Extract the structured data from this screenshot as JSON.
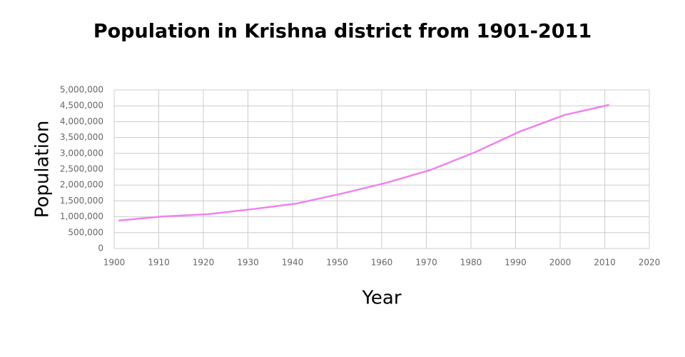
{
  "chart_data": {
    "type": "line",
    "title": "Population in Krishna district from 1901-2011",
    "x_label": "Year",
    "y_label": "Population",
    "x": [
      1901,
      1911,
      1921,
      1931,
      1941,
      1951,
      1961,
      1971,
      1981,
      1991,
      2001,
      2011
    ],
    "series": [
      {
        "color": "#ee82ee",
        "values": [
          880000,
          1010000,
          1080000,
          1240000,
          1420000,
          1730000,
          2070000,
          2480000,
          3040000,
          3690000,
          4210000,
          4530000
        ]
      }
    ],
    "xlim": [
      1900,
      2020
    ],
    "xticks": [
      1900,
      1910,
      1920,
      1930,
      1940,
      1950,
      1960,
      1970,
      1980,
      1990,
      2000,
      2010,
      2020
    ],
    "ylim": [
      0,
      5000000
    ],
    "yticks": [
      0,
      {
        "value": 500000,
        "label": "500,000"
      },
      {
        "value": 1000000,
        "label": "1,000,000"
      },
      {
        "value": 1500000,
        "label": "1,500,000"
      },
      {
        "value": 2000000,
        "label": "2,000,000"
      },
      {
        "value": 2500000,
        "label": "2,500,000"
      },
      {
        "value": 3000000,
        "label": "3,000,000"
      },
      {
        "value": 3500000,
        "label": "3,500,000"
      },
      {
        "value": 4000000,
        "label": "4,000,000"
      },
      {
        "value": 4500000,
        "label": "4,500,000"
      },
      {
        "value": 5000000,
        "label": "5,000,000"
      }
    ],
    "grid": true
  }
}
